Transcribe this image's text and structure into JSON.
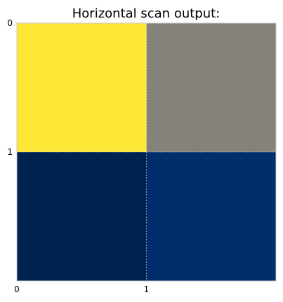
{
  "chart_data": {
    "type": "heatmap",
    "title": "Horizontal scan output:",
    "xlabel": "",
    "ylabel": "",
    "x_ticks": [
      "0",
      "1"
    ],
    "y_ticks": [
      "0",
      "1"
    ],
    "xlim": [
      0,
      2
    ],
    "ylim": [
      2,
      0
    ],
    "grid": true,
    "colormap": "cividis",
    "cells": [
      {
        "row": 0,
        "col": 0,
        "color": "#fde737"
      },
      {
        "row": 0,
        "col": 1,
        "color": "#858279"
      },
      {
        "row": 1,
        "col": 0,
        "color": "#00224e"
      },
      {
        "row": 1,
        "col": 1,
        "color": "#002d6b"
      }
    ]
  }
}
